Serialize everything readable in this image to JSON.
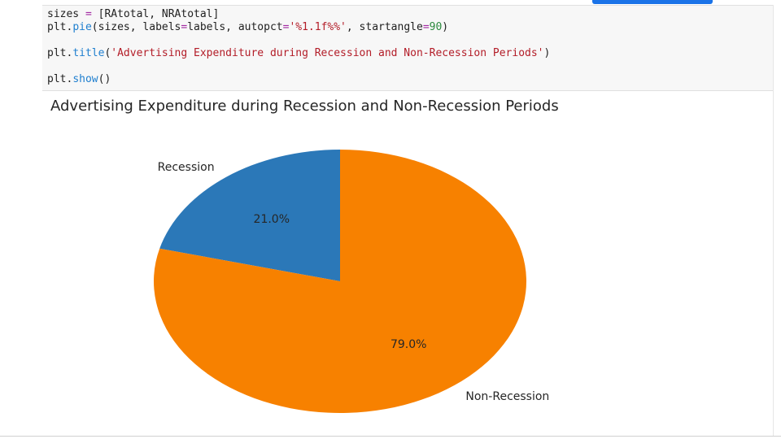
{
  "code_cell": {
    "lines": [
      [
        {
          "t": "sizes ",
          "c": ""
        },
        {
          "t": "=",
          "c": "op"
        },
        {
          "t": " [RAtotal, NRAtotal]",
          "c": ""
        }
      ],
      [
        {
          "t": "plt.",
          "c": ""
        },
        {
          "t": "pie",
          "c": "fn"
        },
        {
          "t": "(sizes, labels",
          "c": ""
        },
        {
          "t": "=",
          "c": "op"
        },
        {
          "t": "labels, autopct",
          "c": ""
        },
        {
          "t": "=",
          "c": "op"
        },
        {
          "t": "'%1.1f%%'",
          "c": "str"
        },
        {
          "t": ", startangle",
          "c": ""
        },
        {
          "t": "=",
          "c": "op"
        },
        {
          "t": "90",
          "c": "num"
        },
        {
          "t": ")",
          "c": ""
        }
      ],
      [],
      [
        {
          "t": "plt.",
          "c": ""
        },
        {
          "t": "title",
          "c": "fn"
        },
        {
          "t": "(",
          "c": ""
        },
        {
          "t": "'Advertising Expenditure during Recession and Non-Recession Periods'",
          "c": "str"
        },
        {
          "t": ")",
          "c": ""
        }
      ],
      [],
      [
        {
          "t": "plt.",
          "c": ""
        },
        {
          "t": "show",
          "c": "fn"
        },
        {
          "t": "()",
          "c": ""
        }
      ]
    ]
  },
  "chart_data": {
    "type": "pie",
    "title": "Advertising Expenditure during Recession and Non-Recession Periods",
    "startangle": 90,
    "counterclock": true,
    "slices": [
      {
        "label": "Recession",
        "value": 21.0,
        "pct_label": "21.0%",
        "color": "#2b78b8"
      },
      {
        "label": "Non-Recession",
        "value": 79.0,
        "pct_label": "79.0%",
        "color": "#f78100"
      }
    ]
  },
  "colors": {
    "accent_button": "#1a73e8"
  }
}
